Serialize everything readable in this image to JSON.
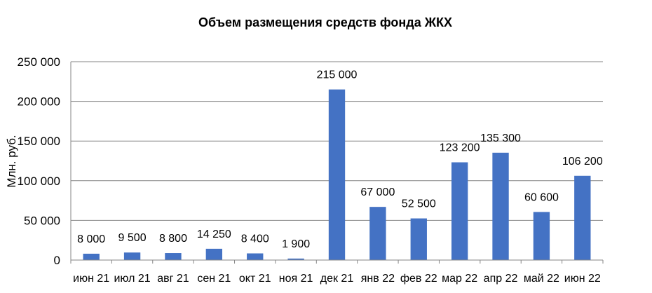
{
  "chart_data": {
    "type": "bar",
    "title": "Объем размещения средств фонда ЖКХ",
    "ylabel": "Млн. руб.",
    "xlabel": "",
    "ylim": [
      0,
      250000
    ],
    "yticks": [
      0,
      50000,
      100000,
      150000,
      200000,
      250000
    ],
    "ytick_labels": [
      "0",
      "50 000",
      "100 000",
      "150 000",
      "200 000",
      "250 000"
    ],
    "grid": true,
    "legend": "none",
    "bar_color": "#4472C4",
    "grid_color": "#868686",
    "categories": [
      "июн 21",
      "июл 21",
      "авг 21",
      "сен 21",
      "окт 21",
      "ноя 21",
      "дек 21",
      "янв 22",
      "фев 22",
      "мар 22",
      "апр 22",
      "май 22",
      "июн 22"
    ],
    "values": [
      8000,
      9500,
      8800,
      14250,
      8400,
      1900,
      215000,
      67000,
      52500,
      123200,
      135300,
      60600,
      106200
    ],
    "value_labels": [
      "8 000",
      "9 500",
      "8 800",
      "14 250",
      "8 400",
      "1 900",
      "215 000",
      "67 000",
      "52 500",
      "123 200",
      "135 300",
      "60 600",
      "106 200"
    ]
  }
}
